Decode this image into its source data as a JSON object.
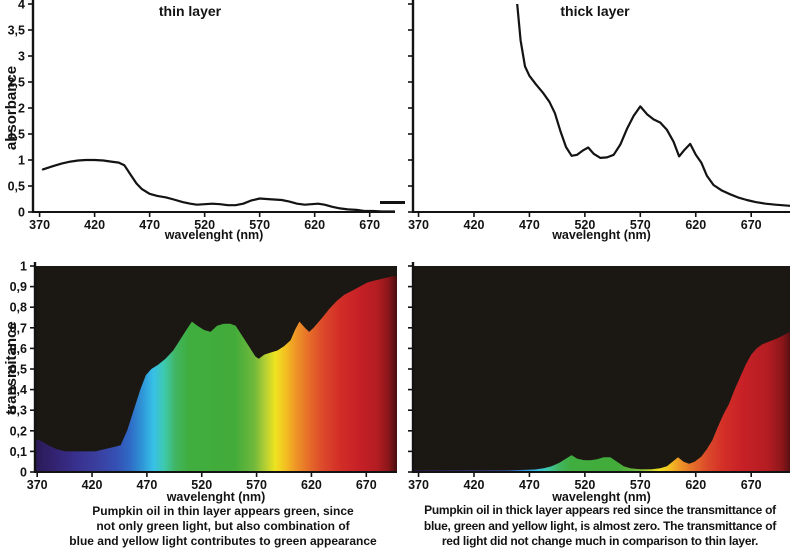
{
  "figure": {
    "background": "#ffffff",
    "text_color": "#131313",
    "panel_black": "#1b1713",
    "captions": {
      "thin": [
        "Pumpkin oil in thin layer appears green, since",
        "not only green light, but also combination of",
        "blue and yellow light contributes to green appearance"
      ],
      "thick": [
        "Pumpkin oil in thick layer appears red since the transmittance of",
        "blue, green and yellow light, is almost zero. The transmittance of",
        "red light did not change much in comparison to thin layer."
      ]
    }
  },
  "chart_data": [
    {
      "id": "absorbance-thin",
      "type": "line",
      "title": "thin layer",
      "xlabel": "wavelenght (nm)",
      "ylabel": "absorbance",
      "xlim": [
        364,
        693
      ],
      "ylim": [
        0,
        4
      ],
      "xticks": [
        370,
        420,
        470,
        520,
        570,
        620,
        670
      ],
      "yticks": [
        0,
        0.5,
        1,
        1.5,
        2,
        2.5,
        3,
        3.5,
        4
      ],
      "ytick_labels": [
        "0",
        "0,5",
        "1",
        "1,5",
        "2",
        "2,5",
        "3",
        "3,5",
        "4"
      ],
      "show_ytick_labels": true,
      "grid": false,
      "line_color": "#131313",
      "points": [
        [
          373,
          0.82
        ],
        [
          382,
          0.88
        ],
        [
          390,
          0.93
        ],
        [
          398,
          0.97
        ],
        [
          405,
          0.99
        ],
        [
          412,
          1.0
        ],
        [
          420,
          1.0
        ],
        [
          428,
          0.99
        ],
        [
          435,
          0.97
        ],
        [
          442,
          0.95
        ],
        [
          447,
          0.9
        ],
        [
          452,
          0.74
        ],
        [
          458,
          0.55
        ],
        [
          463,
          0.44
        ],
        [
          470,
          0.35
        ],
        [
          477,
          0.31
        ],
        [
          485,
          0.28
        ],
        [
          492,
          0.24
        ],
        [
          500,
          0.19
        ],
        [
          507,
          0.16
        ],
        [
          513,
          0.14
        ],
        [
          520,
          0.15
        ],
        [
          527,
          0.16
        ],
        [
          534,
          0.15
        ],
        [
          541,
          0.13
        ],
        [
          548,
          0.13
        ],
        [
          555,
          0.16
        ],
        [
          562,
          0.22
        ],
        [
          570,
          0.26
        ],
        [
          576,
          0.25
        ],
        [
          583,
          0.24
        ],
        [
          590,
          0.23
        ],
        [
          597,
          0.2
        ],
        [
          604,
          0.16
        ],
        [
          611,
          0.14
        ],
        [
          617,
          0.15
        ],
        [
          623,
          0.16
        ],
        [
          629,
          0.14
        ],
        [
          636,
          0.1
        ],
        [
          643,
          0.07
        ],
        [
          650,
          0.05
        ],
        [
          658,
          0.04
        ],
        [
          665,
          0.02
        ],
        [
          673,
          0.02
        ],
        [
          681,
          0.01
        ],
        [
          693,
          0.01
        ]
      ]
    },
    {
      "id": "absorbance-thick",
      "type": "line",
      "title": "thick layer",
      "xlabel": "wavelenght (nm)",
      "ylabel": "",
      "xlim": [
        365,
        705
      ],
      "ylim": [
        0,
        4
      ],
      "xticks": [
        370,
        420,
        470,
        520,
        570,
        620,
        670
      ],
      "yticks": [
        0,
        0.5,
        1,
        1.5,
        2,
        2.5,
        3,
        3.5,
        4
      ],
      "ytick_labels": [
        "0",
        "0,5",
        "1",
        "1,5",
        "2",
        "2,5",
        "3",
        "3,5",
        "4"
      ],
      "show_ytick_labels": false,
      "grid": false,
      "line_color": "#131313",
      "points": [
        [
          457,
          4.5
        ],
        [
          459,
          4.0
        ],
        [
          462,
          3.3
        ],
        [
          466,
          2.8
        ],
        [
          470,
          2.62
        ],
        [
          476,
          2.45
        ],
        [
          482,
          2.3
        ],
        [
          488,
          2.12
        ],
        [
          493,
          1.9
        ],
        [
          498,
          1.55
        ],
        [
          503,
          1.25
        ],
        [
          508,
          1.08
        ],
        [
          513,
          1.1
        ],
        [
          518,
          1.18
        ],
        [
          523,
          1.24
        ],
        [
          528,
          1.12
        ],
        [
          534,
          1.04
        ],
        [
          540,
          1.05
        ],
        [
          546,
          1.1
        ],
        [
          552,
          1.3
        ],
        [
          558,
          1.6
        ],
        [
          564,
          1.85
        ],
        [
          570,
          2.03
        ],
        [
          576,
          1.88
        ],
        [
          582,
          1.78
        ],
        [
          588,
          1.72
        ],
        [
          594,
          1.58
        ],
        [
          600,
          1.35
        ],
        [
          605,
          1.07
        ],
        [
          610,
          1.2
        ],
        [
          615,
          1.31
        ],
        [
          620,
          1.1
        ],
        [
          625,
          0.95
        ],
        [
          630,
          0.7
        ],
        [
          636,
          0.52
        ],
        [
          643,
          0.42
        ],
        [
          650,
          0.35
        ],
        [
          658,
          0.28
        ],
        [
          666,
          0.23
        ],
        [
          674,
          0.19
        ],
        [
          683,
          0.16
        ],
        [
          692,
          0.14
        ],
        [
          705,
          0.12
        ]
      ]
    },
    {
      "id": "transmittance-thin",
      "type": "area-spectrum",
      "title": "",
      "xlabel": "wavelenght (nm)",
      "ylabel": "transmitance",
      "xlim": [
        368,
        698
      ],
      "ylim": [
        0,
        1
      ],
      "xticks": [
        370,
        420,
        470,
        520,
        570,
        620,
        670
      ],
      "yticks": [
        0,
        0.1,
        0.2,
        0.3,
        0.4,
        0.5,
        0.6,
        0.7,
        0.8,
        0.9,
        1
      ],
      "ytick_labels": [
        "0",
        "0,1",
        "0,2",
        "0,3",
        "0,4",
        "0,5",
        "0,6",
        "0,7",
        "0,8",
        "0,9",
        "1"
      ],
      "show_ytick_labels": true,
      "grid": false,
      "background": "#1b1713",
      "spectrum_stops": [
        [
          368,
          "#2a1a55"
        ],
        [
          385,
          "#322270"
        ],
        [
          405,
          "#38308d"
        ],
        [
          425,
          "#3a3f9f"
        ],
        [
          442,
          "#3550b4"
        ],
        [
          455,
          "#2f6cc6"
        ],
        [
          466,
          "#2f97d7"
        ],
        [
          476,
          "#38c0e8"
        ],
        [
          486,
          "#3ec9ac"
        ],
        [
          496,
          "#41b562"
        ],
        [
          508,
          "#3fae3f"
        ],
        [
          550,
          "#42ab3a"
        ],
        [
          568,
          "#71b93c"
        ],
        [
          578,
          "#b5cf33"
        ],
        [
          587,
          "#eee320"
        ],
        [
          596,
          "#f4c122"
        ],
        [
          606,
          "#ee9526"
        ],
        [
          617,
          "#e66f29"
        ],
        [
          630,
          "#dc4a2a"
        ],
        [
          645,
          "#d32f27"
        ],
        [
          662,
          "#c72127"
        ],
        [
          680,
          "#b31d22"
        ],
        [
          690,
          "#8c161a"
        ],
        [
          698,
          "#460d0e"
        ]
      ],
      "points": [
        [
          368,
          0.16
        ],
        [
          374,
          0.15
        ],
        [
          380,
          0.13
        ],
        [
          388,
          0.11
        ],
        [
          396,
          0.1
        ],
        [
          405,
          0.1
        ],
        [
          414,
          0.1
        ],
        [
          423,
          0.1
        ],
        [
          431,
          0.11
        ],
        [
          439,
          0.12
        ],
        [
          446,
          0.13
        ],
        [
          452,
          0.2
        ],
        [
          458,
          0.3
        ],
        [
          464,
          0.4
        ],
        [
          469,
          0.47
        ],
        [
          474,
          0.5
        ],
        [
          480,
          0.52
        ],
        [
          487,
          0.55
        ],
        [
          494,
          0.59
        ],
        [
          500,
          0.64
        ],
        [
          506,
          0.69
        ],
        [
          511,
          0.73
        ],
        [
          516,
          0.71
        ],
        [
          522,
          0.69
        ],
        [
          528,
          0.68
        ],
        [
          534,
          0.71
        ],
        [
          540,
          0.72
        ],
        [
          546,
          0.72
        ],
        [
          551,
          0.71
        ],
        [
          557,
          0.66
        ],
        [
          563,
          0.61
        ],
        [
          569,
          0.56
        ],
        [
          572,
          0.55
        ],
        [
          577,
          0.57
        ],
        [
          583,
          0.58
        ],
        [
          589,
          0.59
        ],
        [
          595,
          0.61
        ],
        [
          601,
          0.64
        ],
        [
          605,
          0.69
        ],
        [
          609,
          0.73
        ],
        [
          614,
          0.7
        ],
        [
          618,
          0.68
        ],
        [
          622,
          0.7
        ],
        [
          630,
          0.75
        ],
        [
          636,
          0.79
        ],
        [
          643,
          0.83
        ],
        [
          650,
          0.86
        ],
        [
          657,
          0.88
        ],
        [
          664,
          0.9
        ],
        [
          671,
          0.92
        ],
        [
          678,
          0.93
        ],
        [
          686,
          0.94
        ],
        [
          694,
          0.95
        ],
        [
          698,
          0.95
        ]
      ]
    },
    {
      "id": "transmittance-thick",
      "type": "area-spectrum",
      "title": "",
      "xlabel": "wavelenght (nm)",
      "ylabel": "",
      "xlim": [
        365,
        705
      ],
      "ylim": [
        0,
        1
      ],
      "xticks": [
        370,
        420,
        470,
        520,
        570,
        620,
        670
      ],
      "yticks": [
        0,
        0.1,
        0.2,
        0.3,
        0.4,
        0.5,
        0.6,
        0.7,
        0.8,
        0.9,
        1
      ],
      "ytick_labels": [
        "0",
        "0,1",
        "0,2",
        "0,3",
        "0,4",
        "0,5",
        "0,6",
        "0,7",
        "0,8",
        "0,9",
        "1"
      ],
      "show_ytick_labels": false,
      "grid": false,
      "background": "#1b1713",
      "spectrum_stops": [
        [
          365,
          "#2a1a55"
        ],
        [
          385,
          "#322270"
        ],
        [
          405,
          "#38308d"
        ],
        [
          425,
          "#3a3f9f"
        ],
        [
          442,
          "#3550b4"
        ],
        [
          455,
          "#2f6cc6"
        ],
        [
          466,
          "#2f97d7"
        ],
        [
          476,
          "#38c0e8"
        ],
        [
          486,
          "#3ec9ac"
        ],
        [
          496,
          "#41b562"
        ],
        [
          508,
          "#3fae3f"
        ],
        [
          550,
          "#42ab3a"
        ],
        [
          568,
          "#71b93c"
        ],
        [
          578,
          "#b5cf33"
        ],
        [
          587,
          "#eee320"
        ],
        [
          596,
          "#f4c122"
        ],
        [
          606,
          "#ee9526"
        ],
        [
          617,
          "#e66f29"
        ],
        [
          630,
          "#dc4a2a"
        ],
        [
          645,
          "#d32f27"
        ],
        [
          662,
          "#c72127"
        ],
        [
          685,
          "#b31d22"
        ],
        [
          698,
          "#8c161a"
        ],
        [
          705,
          "#5a1012"
        ]
      ],
      "points": [
        [
          365,
          0.008
        ],
        [
          390,
          0.008
        ],
        [
          410,
          0.008
        ],
        [
          430,
          0.008
        ],
        [
          450,
          0.008
        ],
        [
          465,
          0.01
        ],
        [
          475,
          0.012
        ],
        [
          483,
          0.018
        ],
        [
          490,
          0.028
        ],
        [
          497,
          0.045
        ],
        [
          503,
          0.065
        ],
        [
          508,
          0.082
        ],
        [
          513,
          0.065
        ],
        [
          519,
          0.058
        ],
        [
          525,
          0.057
        ],
        [
          531,
          0.062
        ],
        [
          537,
          0.072
        ],
        [
          543,
          0.072
        ],
        [
          549,
          0.05
        ],
        [
          555,
          0.028
        ],
        [
          561,
          0.018
        ],
        [
          570,
          0.013
        ],
        [
          580,
          0.013
        ],
        [
          588,
          0.018
        ],
        [
          594,
          0.028
        ],
        [
          599,
          0.05
        ],
        [
          604,
          0.072
        ],
        [
          609,
          0.05
        ],
        [
          614,
          0.04
        ],
        [
          619,
          0.05
        ],
        [
          625,
          0.075
        ],
        [
          630,
          0.11
        ],
        [
          635,
          0.155
        ],
        [
          640,
          0.22
        ],
        [
          645,
          0.28
        ],
        [
          650,
          0.33
        ],
        [
          655,
          0.4
        ],
        [
          660,
          0.46
        ],
        [
          665,
          0.52
        ],
        [
          670,
          0.57
        ],
        [
          675,
          0.6
        ],
        [
          680,
          0.62
        ],
        [
          687,
          0.635
        ],
        [
          694,
          0.65
        ],
        [
          705,
          0.68
        ]
      ]
    }
  ]
}
